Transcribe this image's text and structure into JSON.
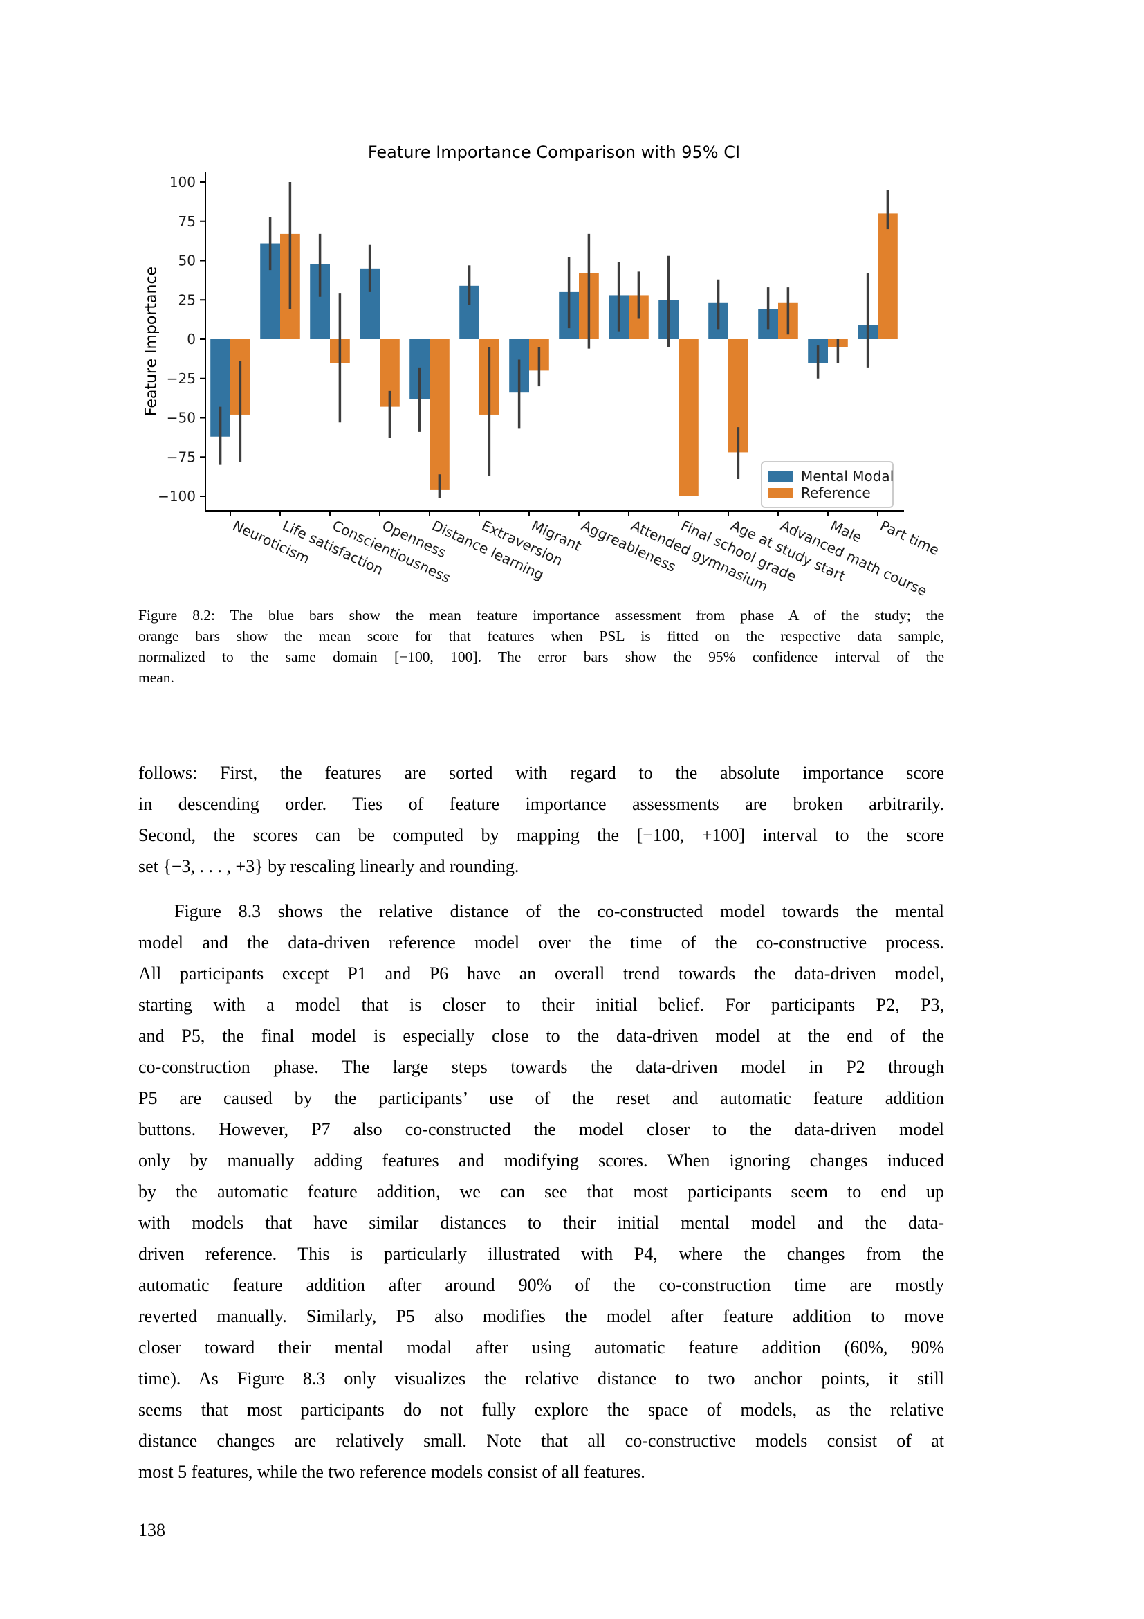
{
  "page": {
    "number": "138"
  },
  "chart_data": {
    "type": "bar",
    "title": "Feature Importance Comparison with 95% CI",
    "xlabel": "",
    "ylabel": "Feature Importance",
    "ylim": [
      -100,
      100
    ],
    "yticks": [
      100,
      75,
      50,
      25,
      0,
      -25,
      -50,
      -75,
      -100
    ],
    "ytick_labels": [
      "100",
      "75",
      "50",
      "25",
      "0",
      "−25",
      "−50",
      "−75",
      "−100"
    ],
    "grid": false,
    "legend_position": "inside lower right",
    "error_bars": "95% confidence interval",
    "error_color": "#3d3d3d",
    "categories": [
      "Neuroticism",
      "Life satisfaction",
      "Conscientiousness",
      "Openness",
      "Distance learning",
      "Extraversion",
      "Migrant",
      "Aggreableness",
      "Attended gymnasium",
      "Final school grade",
      "Age at study start",
      "Advanced math course",
      "Male",
      "Part time"
    ],
    "series": [
      {
        "name": "Mental Modal",
        "color": "#3274a1",
        "values": [
          -62,
          61,
          48,
          45,
          -38,
          34,
          -34,
          30,
          28,
          25,
          23,
          19,
          -15,
          9
        ],
        "ci_low": [
          -80,
          44,
          27,
          30,
          -59,
          22,
          -57,
          7,
          5,
          -5,
          6,
          6,
          -25,
          -18
        ],
        "ci_high": [
          -43,
          78,
          67,
          60,
          -18,
          47,
          -13,
          52,
          49,
          53,
          38,
          33,
          -4,
          42
        ]
      },
      {
        "name": "Reference",
        "color": "#e1812c",
        "values": [
          -48,
          67,
          -15,
          -43,
          -96,
          -48,
          -20,
          42,
          28,
          -100,
          -72,
          23,
          -5,
          80
        ],
        "ci_low": [
          -78,
          19,
          -53,
          -63,
          -101,
          -87,
          -30,
          -6,
          13,
          -100,
          -89,
          3,
          -15,
          70
        ],
        "ci_high": [
          -14,
          100,
          29,
          -33,
          -86,
          -5,
          -5,
          67,
          43,
          -100,
          -56,
          33,
          0,
          95
        ]
      }
    ]
  },
  "caption": {
    "lines": [
      "Figure 8.2: The blue bars show the mean feature importance assessment from phase A of the study; the",
      "orange bars show the mean score for that features when PSL is fitted on the respective data sample,",
      "normalized to the same domain [−100, 100].  The error bars show the 95% confidence interval of the",
      "mean."
    ]
  },
  "paragraphs": [
    {
      "indent": false,
      "lines": [
        "follows:  First, the features are sorted with regard to the absolute importance score",
        "in descending order.  Ties of feature importance assessments are broken arbitrarily.",
        "Second, the scores can be computed by mapping the [−100, +100] interval to the score",
        "set {−3, . . . , +3} by rescaling linearly and rounding."
      ]
    },
    {
      "indent": true,
      "lines": [
        "Figure 8.3 shows the relative distance of the co-constructed model towards the mental",
        "model and the data-driven reference model over the time of the co-constructive process.",
        "All participants except P1 and P6 have an overall trend towards the data-driven model,",
        "starting with a model that is closer to their initial belief.  For participants P2, P3,",
        "and P5, the final model is especially close to the data-driven model at the end of the",
        "co-construction phase.  The large steps towards the data-driven model in P2 through",
        "P5 are caused by the participants’ use of the reset and automatic feature addition",
        "buttons.  However, P7 also co-constructed the model closer to the data-driven model",
        "only by manually adding features and modifying scores.  When ignoring changes induced",
        "by the automatic feature addition, we can see that most participants seem to end up",
        "with models that have similar distances to their initial mental model and the data-",
        "driven reference.  This is particularly illustrated with P4, where the changes from the",
        "automatic feature addition after around 90% of the co-construction time are mostly",
        "reverted manually.  Similarly, P5 also modifies the model after feature addition to move",
        "closer toward their mental modal after using automatic feature addition (60%, 90%",
        "time).  As Figure 8.3 only visualizes the relative distance to two anchor points, it still",
        "seems that most participants do not fully explore the space of models, as the relative",
        "distance changes are relatively small. Note that all co-constructive models consist of at",
        "most 5 features, while the two reference models consist of all features."
      ]
    }
  ]
}
